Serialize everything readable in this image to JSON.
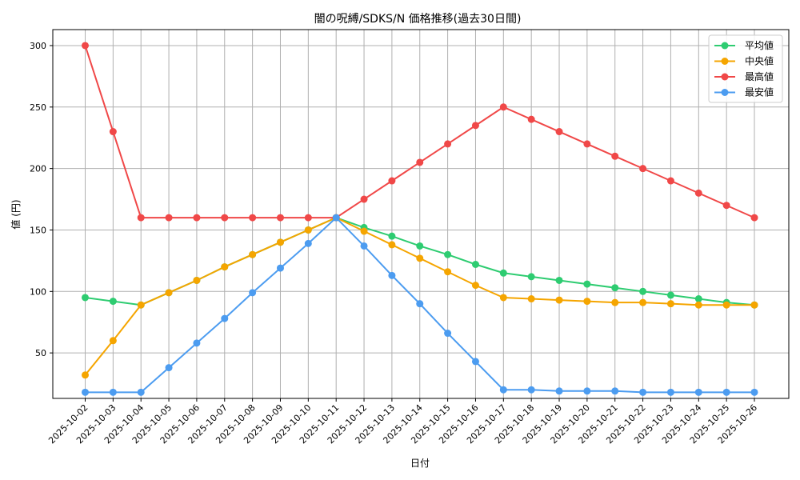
{
  "chart_data": {
    "type": "line",
    "title": "闇の呪縛/SDKS/N 価格推移(過去30日間)",
    "xlabel": "日付",
    "ylabel": "値 (円)",
    "x": [
      "2025-10-02",
      "2025-10-03",
      "2025-10-04",
      "2025-10-05",
      "2025-10-06",
      "2025-10-07",
      "2025-10-08",
      "2025-10-09",
      "2025-10-10",
      "2025-10-11",
      "2025-10-12",
      "2025-10-13",
      "2025-10-14",
      "2025-10-15",
      "2025-10-16",
      "2025-10-17",
      "2025-10-18",
      "2025-10-19",
      "2025-10-20",
      "2025-10-21",
      "2025-10-22",
      "2025-10-23",
      "2025-10-24",
      "2025-10-25",
      "2025-10-26"
    ],
    "ylim": [
      13,
      313
    ],
    "yticks": [
      50,
      100,
      150,
      200,
      250,
      300
    ],
    "grid": true,
    "legend_position": "top-right",
    "series": [
      {
        "name": "平均値",
        "color": "#2ecc71",
        "values": [
          95,
          92,
          89,
          99,
          109,
          120,
          130,
          140,
          150,
          160,
          152,
          145,
          137,
          130,
          122,
          115,
          112,
          109,
          106,
          103,
          100,
          97,
          94,
          91,
          89
        ]
      },
      {
        "name": "中央値",
        "color": "#f5a500",
        "values": [
          32,
          60,
          89,
          99,
          109,
          120,
          130,
          140,
          150,
          160,
          149,
          138,
          127,
          116,
          105,
          95,
          94,
          93,
          92,
          91,
          91,
          90,
          89,
          89,
          89
        ]
      },
      {
        "name": "最高値",
        "color": "#f04848",
        "values": [
          300,
          230,
          160,
          160,
          160,
          160,
          160,
          160,
          160,
          160,
          175,
          190,
          205,
          220,
          235,
          250,
          240,
          230,
          220,
          210,
          200,
          190,
          180,
          170,
          160
        ]
      },
      {
        "name": "最安値",
        "color": "#4c9cf0",
        "values": [
          18,
          18,
          18,
          38,
          58,
          78,
          99,
          119,
          139,
          160,
          137,
          113,
          90,
          66,
          43,
          20,
          20,
          19,
          19,
          19,
          18,
          18,
          18,
          18,
          18
        ]
      }
    ]
  }
}
